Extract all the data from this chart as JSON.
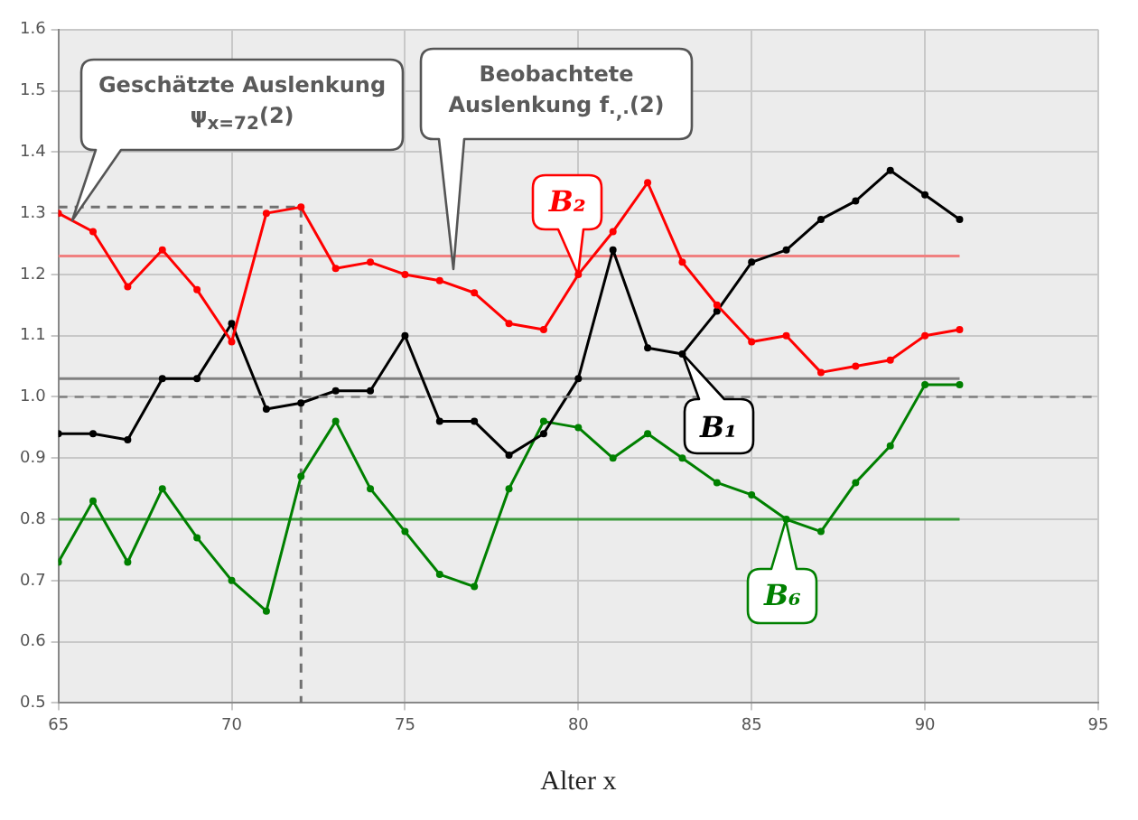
{
  "chart_data": {
    "type": "line",
    "xlabel": "Alter x",
    "xlim": [
      65,
      95
    ],
    "xticks": [
      65,
      70,
      75,
      80,
      85,
      90,
      95
    ],
    "ylim": [
      0.5,
      1.6
    ],
    "yticks": [
      0.5,
      0.6,
      0.7,
      0.8,
      0.9,
      {
        "value": 1,
        "label": "1.0"
      },
      1.1,
      1.2,
      1.3,
      1.4,
      1.5,
      1.6
    ],
    "grid": true,
    "legend": false,
    "marker": "circle",
    "x": [
      65,
      66,
      67,
      68,
      69,
      70,
      71,
      72,
      73,
      74,
      75,
      76,
      77,
      78,
      79,
      80,
      81,
      82,
      83,
      84,
      85,
      86,
      87,
      88,
      89,
      90,
      91
    ],
    "series": [
      {
        "name": "B₂",
        "color": "#ff0000",
        "values": [
          1.3,
          1.27,
          1.18,
          1.24,
          1.175,
          1.09,
          1.3,
          1.31,
          1.21,
          1.22,
          1.2,
          1.19,
          1.17,
          1.12,
          1.11,
          1.2,
          1.27,
          1.35,
          1.22,
          1.15,
          1.09,
          1.1,
          1.04,
          1.05,
          1.06,
          1.1,
          1.11
        ]
      },
      {
        "name": "B₁",
        "color": "#000000",
        "values": [
          0.94,
          0.94,
          0.93,
          1.03,
          1.03,
          1.12,
          0.98,
          0.99,
          1.01,
          1.01,
          1.1,
          0.96,
          0.96,
          0.905,
          0.94,
          1.03,
          1.24,
          1.08,
          1.07,
          1.14,
          1.22,
          1.24,
          1.29,
          1.32,
          1.37,
          1.33,
          1.29
        ]
      },
      {
        "name": "B₆",
        "color": "#008000",
        "values": [
          0.73,
          0.83,
          0.73,
          0.85,
          0.77,
          0.7,
          0.65,
          0.87,
          0.96,
          0.85,
          0.78,
          0.71,
          0.69,
          0.85,
          0.96,
          0.95,
          0.9,
          0.94,
          0.9,
          0.86,
          0.84,
          0.8,
          0.78,
          0.86,
          0.92,
          1.02,
          1.02
        ]
      },
      {
        "type": "line",
        "color": "#f08080",
        "marker": "none",
        "x": [
          65,
          91
        ],
        "values": [
          1.23,
          1.23
        ]
      },
      {
        "type": "line",
        "color": "#808080",
        "marker": "none",
        "x": [
          65,
          91
        ],
        "values": [
          1.03,
          1.03
        ]
      },
      {
        "type": "line",
        "color": "#3a9a3a",
        "marker": "none",
        "x": [
          65,
          91
        ],
        "values": [
          0.8,
          0.8
        ]
      },
      {
        "type": "line",
        "color": "#707070",
        "marker": "none",
        "line_style": "dashed",
        "x": [
          65,
          72,
          72
        ],
        "values": [
          1.31,
          1.31,
          0.5
        ]
      }
    ],
    "ref_lines": [
      {
        "axis": "y",
        "value": 1,
        "color": "#808080",
        "line_style": "dashed"
      }
    ],
    "annotations": [
      "Geschätzte Auslenkung ψ$_{x=72}$(2)",
      "Beobachtete Auslenkung f$_{·,·}$(2)"
    ]
  }
}
